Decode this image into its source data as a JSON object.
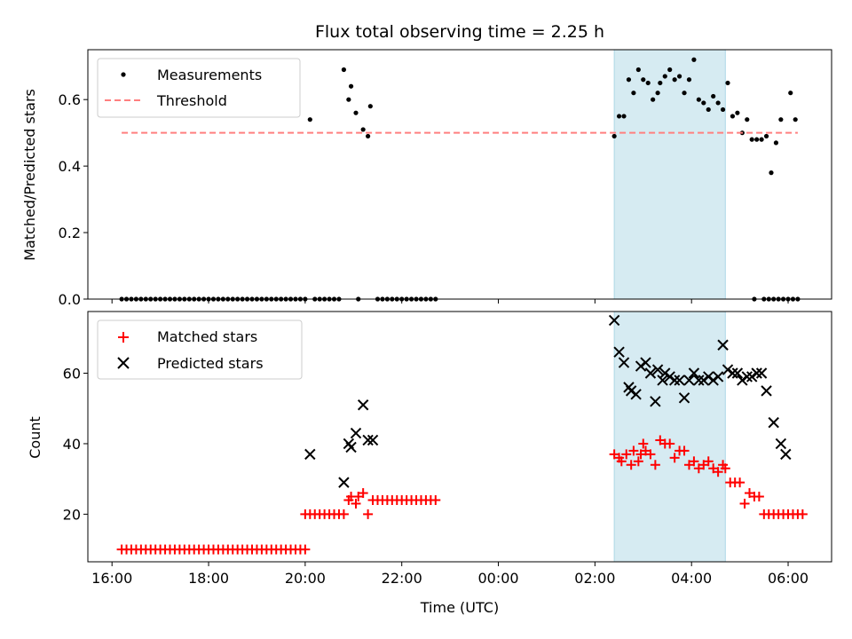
{
  "chart_data": [
    {
      "type": "scatter",
      "title": "Flux total observing time = 2.25 h",
      "xlabel": "",
      "ylabel": "Matched/Predicted stars",
      "ylim": [
        0,
        0.75
      ],
      "yticks": [
        0.0,
        0.2,
        0.4,
        0.6
      ],
      "ytick_labels": [
        "0.0",
        "0.2",
        "0.4",
        "0.6"
      ],
      "xlim": [
        15.5,
        30.9
      ],
      "xticks": [
        16,
        18,
        20,
        22,
        24,
        26,
        28,
        30
      ],
      "xtick_labels": [],
      "highlight_span": {
        "x_start": 26.4,
        "x_end": 28.7,
        "color": "#add8e6"
      },
      "legend_position": "upper left",
      "series": [
        {
          "name": "Measurements",
          "style": "dot",
          "color": "#000000",
          "zeros_x_ranges": [
            [
              16.2,
              20.0
            ],
            [
              20.2,
              20.7
            ],
            [
              21.1,
              21.1
            ],
            [
              21.5,
              22.7
            ],
            [
              29.3,
              29.3
            ],
            [
              29.5,
              30.2
            ]
          ],
          "points": [
            [
              20.1,
              0.54
            ],
            [
              20.8,
              0.69
            ],
            [
              20.9,
              0.6
            ],
            [
              20.95,
              0.64
            ],
            [
              21.05,
              0.56
            ],
            [
              21.2,
              0.51
            ],
            [
              21.3,
              0.49
            ],
            [
              21.35,
              0.58
            ],
            [
              26.4,
              0.49
            ],
            [
              26.5,
              0.55
            ],
            [
              26.6,
              0.55
            ],
            [
              26.7,
              0.66
            ],
            [
              26.8,
              0.62
            ],
            [
              26.9,
              0.69
            ],
            [
              27.0,
              0.66
            ],
            [
              27.1,
              0.65
            ],
            [
              27.2,
              0.6
            ],
            [
              27.3,
              0.62
            ],
            [
              27.35,
              0.65
            ],
            [
              27.45,
              0.67
            ],
            [
              27.55,
              0.69
            ],
            [
              27.65,
              0.66
            ],
            [
              27.75,
              0.67
            ],
            [
              27.85,
              0.62
            ],
            [
              27.95,
              0.66
            ],
            [
              28.05,
              0.72
            ],
            [
              28.15,
              0.6
            ],
            [
              28.25,
              0.59
            ],
            [
              28.35,
              0.57
            ],
            [
              28.45,
              0.61
            ],
            [
              28.55,
              0.59
            ],
            [
              28.65,
              0.57
            ],
            [
              28.75,
              0.65
            ],
            [
              28.85,
              0.55
            ],
            [
              28.95,
              0.56
            ],
            [
              29.05,
              0.5
            ],
            [
              29.15,
              0.54
            ],
            [
              29.25,
              0.48
            ],
            [
              29.35,
              0.48
            ],
            [
              29.45,
              0.48
            ],
            [
              29.55,
              0.49
            ],
            [
              29.65,
              0.38
            ],
            [
              29.75,
              0.47
            ],
            [
              29.85,
              0.54
            ],
            [
              30.05,
              0.62
            ],
            [
              30.15,
              0.54
            ]
          ]
        },
        {
          "name": "Threshold",
          "style": "dashed-line",
          "color": "#ff7f7f",
          "x": [
            16.2,
            30.2
          ],
          "y": [
            0.5,
            0.5
          ]
        }
      ]
    },
    {
      "type": "scatter",
      "title": "",
      "xlabel": "Time (UTC)",
      "ylabel": "Count",
      "ylim": [
        6.5,
        77.5
      ],
      "yticks": [
        20,
        40,
        60
      ],
      "ytick_labels": [
        "20",
        "40",
        "60"
      ],
      "xlim": [
        15.5,
        30.9
      ],
      "xticks": [
        16,
        18,
        20,
        22,
        24,
        26,
        28,
        30
      ],
      "xtick_labels": [
        "16:00",
        "18:00",
        "20:00",
        "22:00",
        "00:00",
        "02:00",
        "04:00",
        "06:00"
      ],
      "highlight_span": {
        "x_start": 26.4,
        "x_end": 28.7,
        "color": "#add8e6"
      },
      "legend_position": "upper left",
      "series": [
        {
          "name": "Matched stars",
          "style": "plus",
          "color": "#ff0000",
          "constant_runs": [
            {
              "x_range": [
                16.2,
                20.0
              ],
              "y": 10
            },
            {
              "x_range": [
                20.0,
                20.8
              ],
              "y": 20
            },
            {
              "x_range": [
                21.5,
                22.7
              ],
              "y": 24
            }
          ],
          "points": [
            [
              20.9,
              24
            ],
            [
              20.95,
              25
            ],
            [
              21.05,
              23
            ],
            [
              21.1,
              25
            ],
            [
              21.2,
              26
            ],
            [
              21.3,
              20
            ],
            [
              21.4,
              24
            ],
            [
              26.4,
              37
            ],
            [
              26.5,
              36
            ],
            [
              26.55,
              35
            ],
            [
              26.65,
              37
            ],
            [
              26.75,
              34
            ],
            [
              26.8,
              38
            ],
            [
              26.9,
              35
            ],
            [
              26.95,
              37
            ],
            [
              27.0,
              40
            ],
            [
              27.05,
              38
            ],
            [
              27.15,
              37
            ],
            [
              27.25,
              34
            ],
            [
              27.35,
              41
            ],
            [
              27.45,
              40
            ],
            [
              27.55,
              40
            ],
            [
              27.65,
              36
            ],
            [
              27.75,
              38
            ],
            [
              27.85,
              38
            ],
            [
              27.95,
              34
            ],
            [
              28.05,
              35
            ],
            [
              28.15,
              33
            ],
            [
              28.25,
              34
            ],
            [
              28.35,
              35
            ],
            [
              28.45,
              33
            ],
            [
              28.55,
              32
            ],
            [
              28.65,
              34
            ],
            [
              28.7,
              33
            ],
            [
              28.8,
              29
            ],
            [
              28.9,
              29
            ],
            [
              29.0,
              29
            ],
            [
              29.1,
              23
            ],
            [
              29.2,
              26
            ],
            [
              29.3,
              25
            ],
            [
              29.4,
              25
            ],
            [
              29.5,
              20
            ],
            [
              29.6,
              20
            ],
            [
              29.7,
              20
            ],
            [
              29.8,
              20
            ],
            [
              29.9,
              20
            ],
            [
              30.0,
              20
            ],
            [
              30.1,
              20
            ],
            [
              30.2,
              20
            ],
            [
              30.3,
              20
            ]
          ]
        },
        {
          "name": "Predicted stars",
          "style": "x",
          "color": "#000000",
          "points": [
            [
              20.1,
              37
            ],
            [
              20.8,
              29
            ],
            [
              20.9,
              40
            ],
            [
              20.95,
              39
            ],
            [
              21.05,
              43
            ],
            [
              21.2,
              51
            ],
            [
              21.3,
              41
            ],
            [
              21.4,
              41
            ],
            [
              26.4,
              75
            ],
            [
              26.5,
              66
            ],
            [
              26.6,
              63
            ],
            [
              26.7,
              56
            ],
            [
              26.75,
              55
            ],
            [
              26.85,
              54
            ],
            [
              26.95,
              62
            ],
            [
              27.05,
              63
            ],
            [
              27.15,
              60
            ],
            [
              27.25,
              52
            ],
            [
              27.3,
              61
            ],
            [
              27.4,
              58
            ],
            [
              27.45,
              60
            ],
            [
              27.55,
              59
            ],
            [
              27.65,
              58
            ],
            [
              27.75,
              58
            ],
            [
              27.85,
              53
            ],
            [
              27.95,
              58
            ],
            [
              28.05,
              60
            ],
            [
              28.15,
              58
            ],
            [
              28.25,
              58
            ],
            [
              28.35,
              59
            ],
            [
              28.45,
              58
            ],
            [
              28.55,
              59
            ],
            [
              28.65,
              68
            ],
            [
              28.75,
              61
            ],
            [
              28.85,
              60
            ],
            [
              28.95,
              60
            ],
            [
              29.05,
              58
            ],
            [
              29.15,
              59
            ],
            [
              29.25,
              59
            ],
            [
              29.35,
              60
            ],
            [
              29.45,
              60
            ],
            [
              29.55,
              55
            ],
            [
              29.7,
              46
            ],
            [
              29.85,
              40
            ],
            [
              29.95,
              37
            ]
          ]
        }
      ]
    }
  ]
}
